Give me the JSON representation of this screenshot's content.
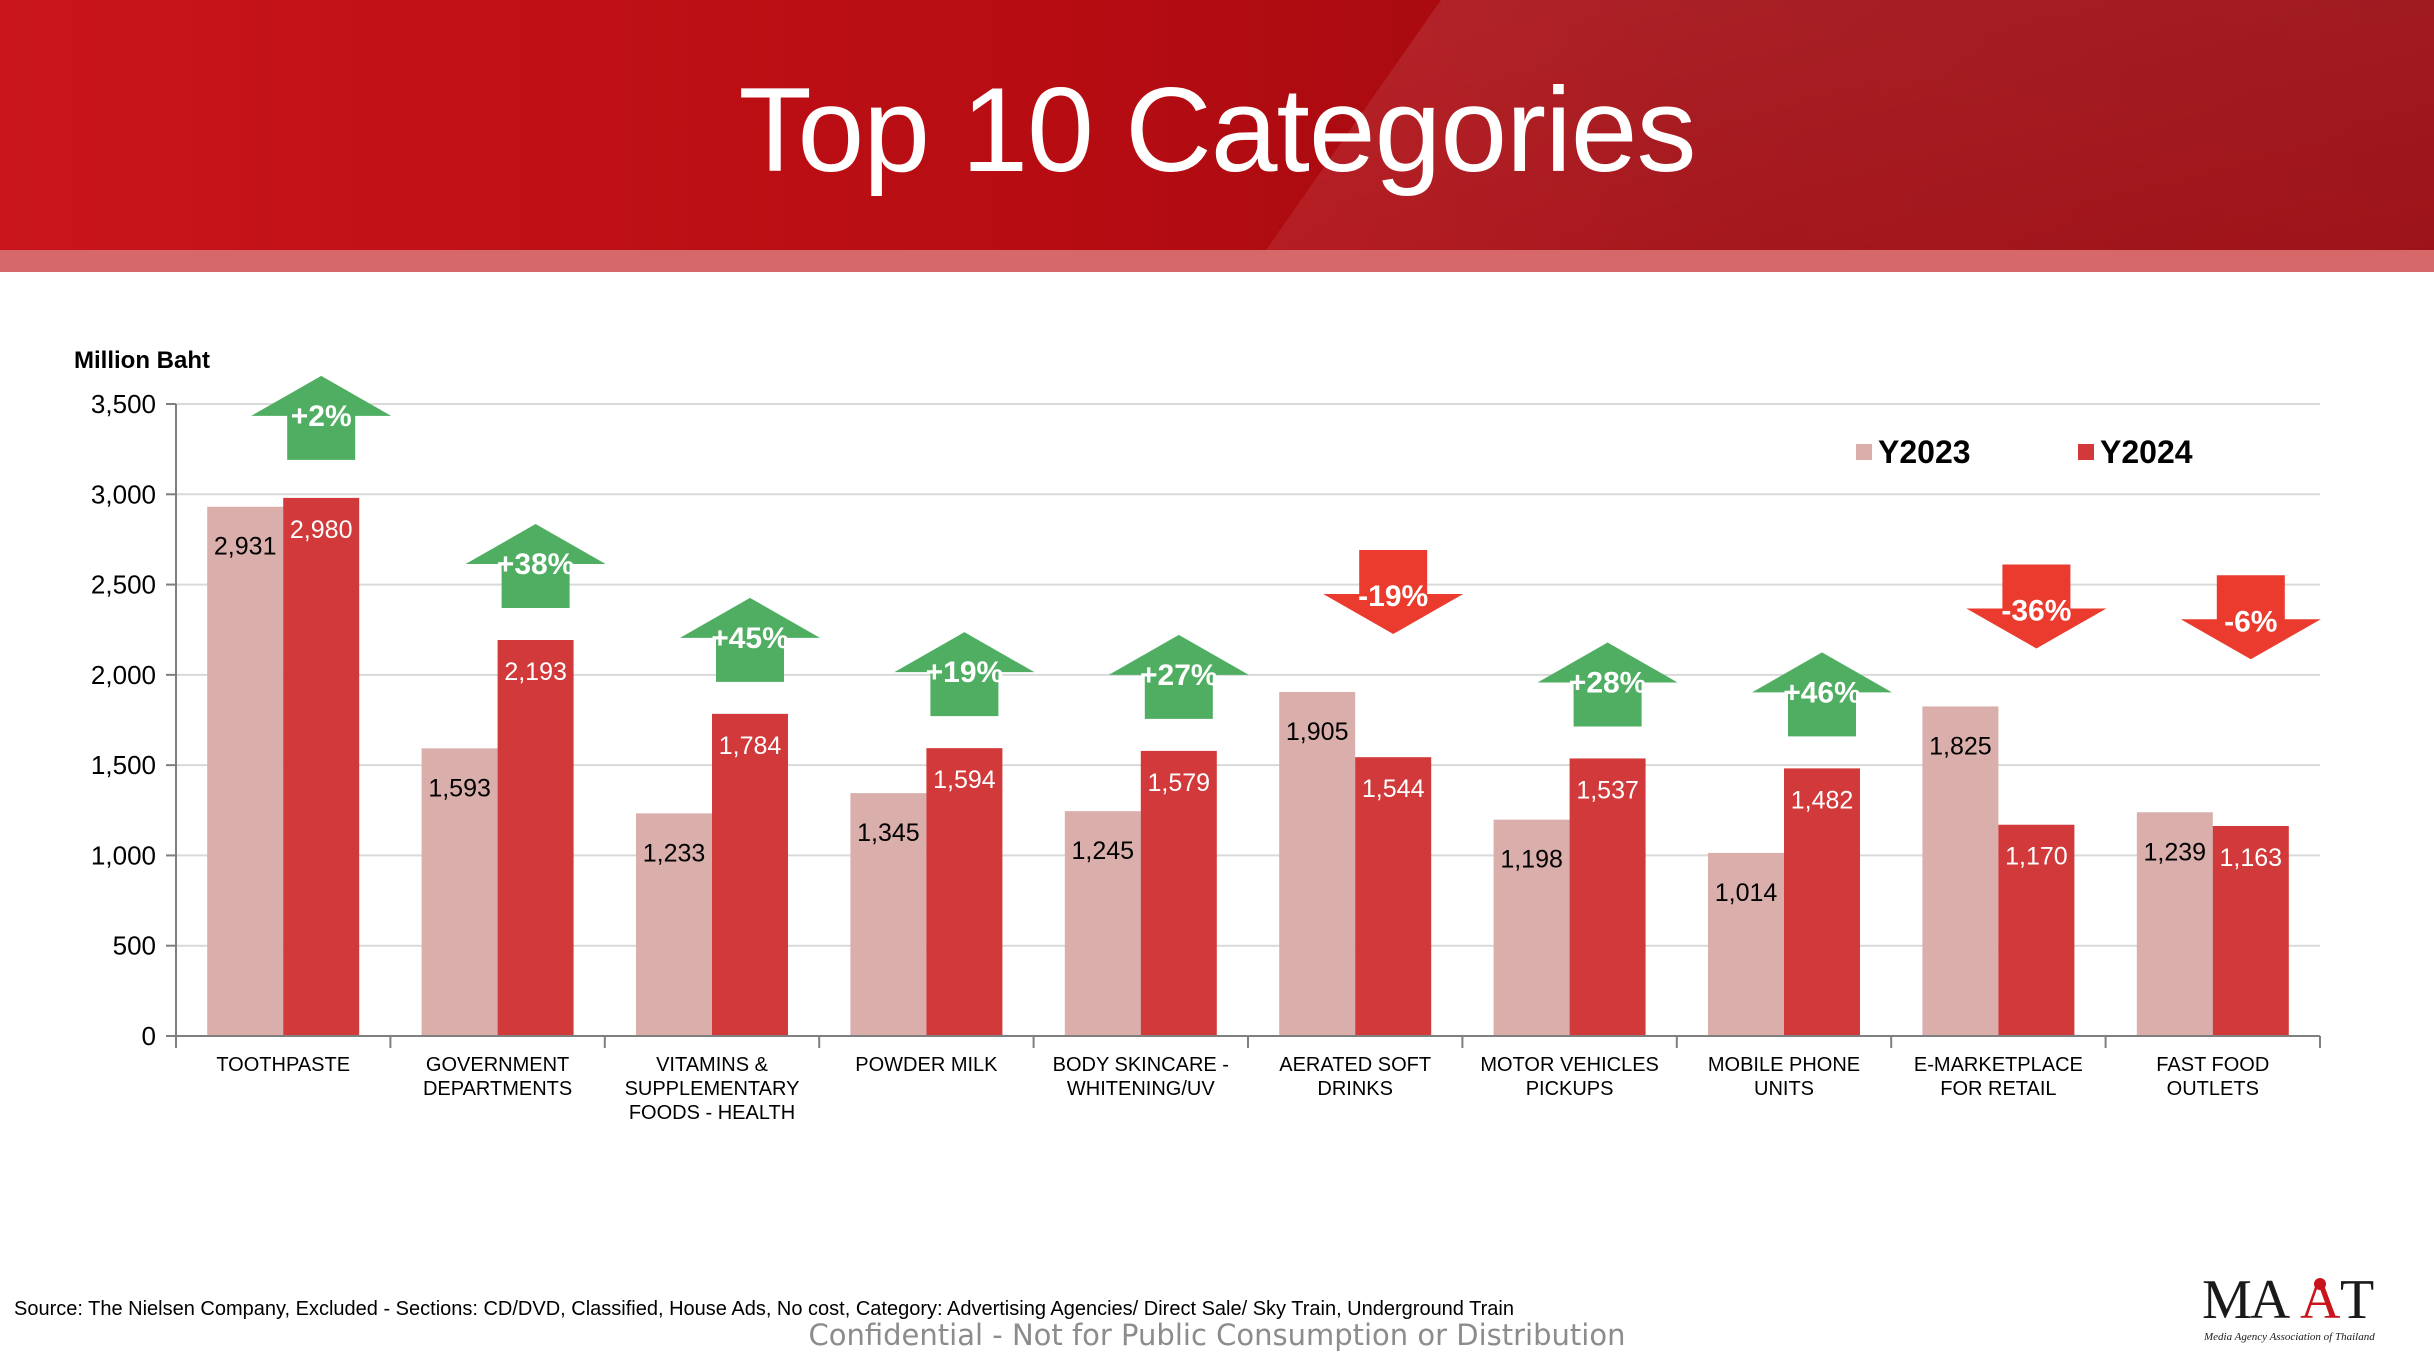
{
  "page": {
    "title": "Top 10 Categories"
  },
  "footer": {
    "source": "Source: The Nielsen  Company, Excluded - Sections: CD/DVD, Classified, House Ads, No cost, Category: Advertising Agencies/ Direct Sale/ Sky Train, Underground Train",
    "confidential": "Confidential - Not for Public Consumption or Distribution"
  },
  "logo": {
    "text": "MAAT",
    "subtitle": "Media Agency Association of Thailand"
  },
  "colors": {
    "banner": "#b50c12",
    "y2023": "#d9aeab",
    "y2024": "#d1393a",
    "up": "#4fae62",
    "down": "#ea3b2e"
  },
  "chart_data": {
    "type": "bar",
    "ylabel": "Million Baht",
    "ylim": [
      0,
      3500
    ],
    "yticks": [
      0,
      500,
      1000,
      1500,
      2000,
      2500,
      3000,
      3500
    ],
    "ytick_labels": [
      "0",
      "500",
      "1,000",
      "1,500",
      "2,000",
      "2,500",
      "3,000",
      "3,500"
    ],
    "grid": true,
    "legend_position": "top-right",
    "categories": [
      [
        "TOOTHPASTE"
      ],
      [
        "GOVERNMENT",
        "DEPARTMENTS"
      ],
      [
        "VITAMINS &",
        "SUPPLEMENTARY",
        "FOODS - HEALTH"
      ],
      [
        "POWDER MILK"
      ],
      [
        "BODY SKINCARE -",
        "WHITENING/UV"
      ],
      [
        "AERATED SOFT",
        "DRINKS"
      ],
      [
        "MOTOR VEHICLES",
        "PICKUPS"
      ],
      [
        "MOBILE PHONE",
        "UNITS"
      ],
      [
        "E-MARKETPLACE",
        "FOR RETAIL"
      ],
      [
        "FAST FOOD",
        "OUTLETS"
      ]
    ],
    "series": [
      {
        "name": "Y2023",
        "values": [
          2931,
          1593,
          1233,
          1345,
          1245,
          1905,
          1198,
          1014,
          1825,
          1239
        ],
        "labels": [
          "2,931",
          "1,593",
          "1,233",
          "1,345",
          "1,245",
          "1,905",
          "1,198",
          "1,014",
          "1,825",
          "1,239"
        ]
      },
      {
        "name": "Y2024",
        "values": [
          2980,
          2193,
          1784,
          1594,
          1579,
          1544,
          1537,
          1482,
          1170,
          1163
        ],
        "labels": [
          "2,980",
          "2,193",
          "1,784",
          "1,594",
          "1,579",
          "1,544",
          "1,537",
          "1,482",
          "1,170",
          "1,163"
        ]
      }
    ],
    "changes": [
      {
        "label": "+2%",
        "direction": "up"
      },
      {
        "label": "+38%",
        "direction": "up"
      },
      {
        "label": "+45%",
        "direction": "up"
      },
      {
        "label": "+19%",
        "direction": "up"
      },
      {
        "label": "+27%",
        "direction": "up"
      },
      {
        "label": "-19%",
        "direction": "down"
      },
      {
        "label": "+28%",
        "direction": "up"
      },
      {
        "label": "+46%",
        "direction": "up"
      },
      {
        "label": "-36%",
        "direction": "down"
      },
      {
        "label": "-6%",
        "direction": "down"
      }
    ]
  }
}
